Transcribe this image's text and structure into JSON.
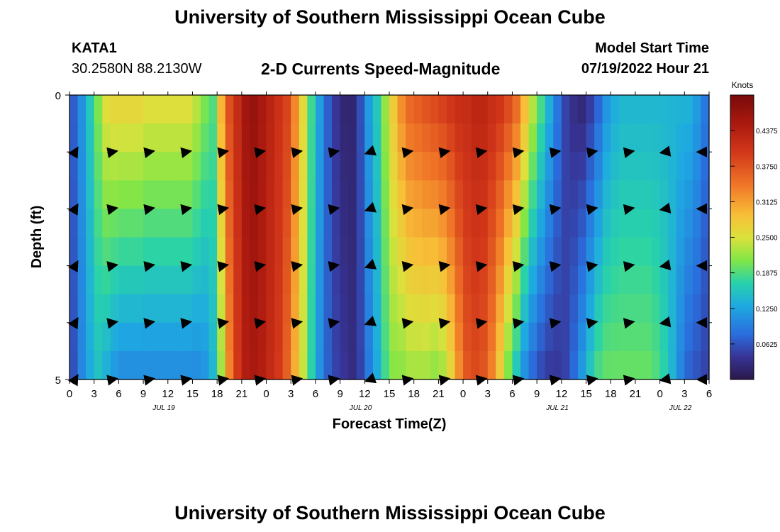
{
  "header": {
    "title_top": "University of Southern Mississippi Ocean Cube",
    "title_bottom": "University of Southern Mississippi Ocean Cube",
    "station_id": "KATA1",
    "coordinates": "30.2580N  88.2130W",
    "plot_title": "2-D Currents Speed-Magnitude",
    "model_start_label": "Model Start Time",
    "model_start_value": "07/19/2022 Hour 21"
  },
  "chart_data": {
    "type": "heatmap",
    "title": "2-D Currents Speed-Magnitude",
    "xlabel": "Forecast Time(Z)",
    "ylabel": "Depth (ft)",
    "x_range_hours": [
      0,
      78
    ],
    "y_range_ft": [
      0,
      5
    ],
    "x_tick_hours": [
      0,
      3,
      6,
      9,
      12,
      15,
      18,
      21,
      24,
      27,
      30,
      33,
      36,
      39,
      42,
      45,
      48,
      51,
      54,
      57,
      60,
      63,
      66,
      69,
      72,
      75,
      78
    ],
    "x_tick_labels": [
      "0",
      "3",
      "6",
      "9",
      "12",
      "15",
      "18",
      "21",
      "0",
      "3",
      "6",
      "9",
      "12",
      "15",
      "18",
      "21",
      "0",
      "3",
      "6",
      "9",
      "12",
      "15",
      "18",
      "21",
      "0",
      "3",
      "6"
    ],
    "date_labels": [
      {
        "text": "JUL 19",
        "hour": 11.5
      },
      {
        "text": "JUL 20",
        "hour": 35.5
      },
      {
        "text": "JUL 21",
        "hour": 59.5
      },
      {
        "text": "JUL 22",
        "hour": 74.5
      }
    ],
    "y_tick_labels": [
      {
        "depth": 0,
        "text": "0"
      },
      {
        "depth": 5,
        "text": "5"
      }
    ],
    "y_minor_ticks_ft": [
      1,
      2,
      3,
      4
    ],
    "colorbar": {
      "unit": "Knots",
      "min": 0,
      "max": 0.5,
      "ticks": [
        "0.0625",
        "0.1250",
        "0.1875",
        "0.2500",
        "0.3125",
        "0.3750",
        "0.4375"
      ],
      "tick_values": [
        0.0625,
        0.125,
        0.1875,
        0.25,
        0.3125,
        0.375,
        0.4375
      ]
    },
    "speed_profile": {
      "hours": [
        0,
        1,
        2,
        3,
        4,
        5,
        6,
        7,
        8,
        9,
        10,
        11,
        12,
        13,
        14,
        15,
        16,
        17,
        18,
        19,
        20,
        21,
        22,
        23,
        24,
        25,
        26,
        27,
        28,
        29,
        30,
        31,
        32,
        33,
        34,
        35,
        36,
        37,
        38,
        39,
        40,
        41,
        42,
        43,
        44,
        45,
        46,
        47,
        48,
        49,
        50,
        51,
        52,
        53,
        54,
        55,
        56,
        57,
        58,
        59,
        60,
        61,
        62,
        63,
        64,
        65,
        66,
        67,
        68,
        69,
        70,
        71,
        72,
        73,
        74,
        75,
        76,
        77
      ],
      "surface": [
        0.07,
        0.11,
        0.16,
        0.21,
        0.26,
        0.27,
        0.27,
        0.27,
        0.27,
        0.26,
        0.26,
        0.26,
        0.26,
        0.26,
        0.26,
        0.24,
        0.21,
        0.19,
        0.3,
        0.38,
        0.42,
        0.46,
        0.47,
        0.45,
        0.43,
        0.41,
        0.39,
        0.33,
        0.26,
        0.18,
        0.12,
        0.07,
        0.04,
        0.02,
        0.02,
        0.06,
        0.12,
        0.16,
        0.22,
        0.28,
        0.33,
        0.36,
        0.37,
        0.38,
        0.39,
        0.4,
        0.41,
        0.42,
        0.42,
        0.43,
        0.43,
        0.42,
        0.41,
        0.39,
        0.36,
        0.3,
        0.24,
        0.19,
        0.14,
        0.09,
        0.05,
        0.03,
        0.02,
        0.04,
        0.07,
        0.11,
        0.13,
        0.14,
        0.14,
        0.14,
        0.14,
        0.14,
        0.14,
        0.14,
        0.14,
        0.14,
        0.12,
        0.09
      ],
      "bottom": [
        0.06,
        0.1,
        0.13,
        0.15,
        0.13,
        0.11,
        0.1,
        0.1,
        0.1,
        0.1,
        0.1,
        0.1,
        0.1,
        0.1,
        0.1,
        0.1,
        0.11,
        0.14,
        0.22,
        0.33,
        0.4,
        0.44,
        0.45,
        0.44,
        0.42,
        0.4,
        0.36,
        0.3,
        0.24,
        0.17,
        0.11,
        0.07,
        0.05,
        0.04,
        0.03,
        0.05,
        0.09,
        0.13,
        0.18,
        0.21,
        0.21,
        0.22,
        0.22,
        0.22,
        0.21,
        0.22,
        0.26,
        0.32,
        0.37,
        0.38,
        0.37,
        0.33,
        0.27,
        0.2,
        0.15,
        0.1,
        0.07,
        0.05,
        0.04,
        0.04,
        0.05,
        0.08,
        0.12,
        0.16,
        0.19,
        0.2,
        0.2,
        0.2,
        0.2,
        0.2,
        0.2,
        0.19,
        0.17,
        0.14,
        0.1,
        0.07,
        0.06,
        0.05
      ]
    },
    "vectors": {
      "hours": [
        0,
        4.5,
        9,
        13.5,
        18,
        22.5,
        27,
        31.5,
        36,
        40.5,
        45,
        49.5,
        54,
        58.5,
        63,
        67.5,
        72,
        76.5
      ],
      "depths_ft": [
        1,
        2,
        3,
        4,
        5
      ],
      "direction_deg": [
        60,
        10,
        10,
        10,
        10,
        10,
        10,
        10,
        -160,
        10,
        10,
        10,
        10,
        10,
        10,
        10,
        -170,
        180
      ]
    }
  }
}
